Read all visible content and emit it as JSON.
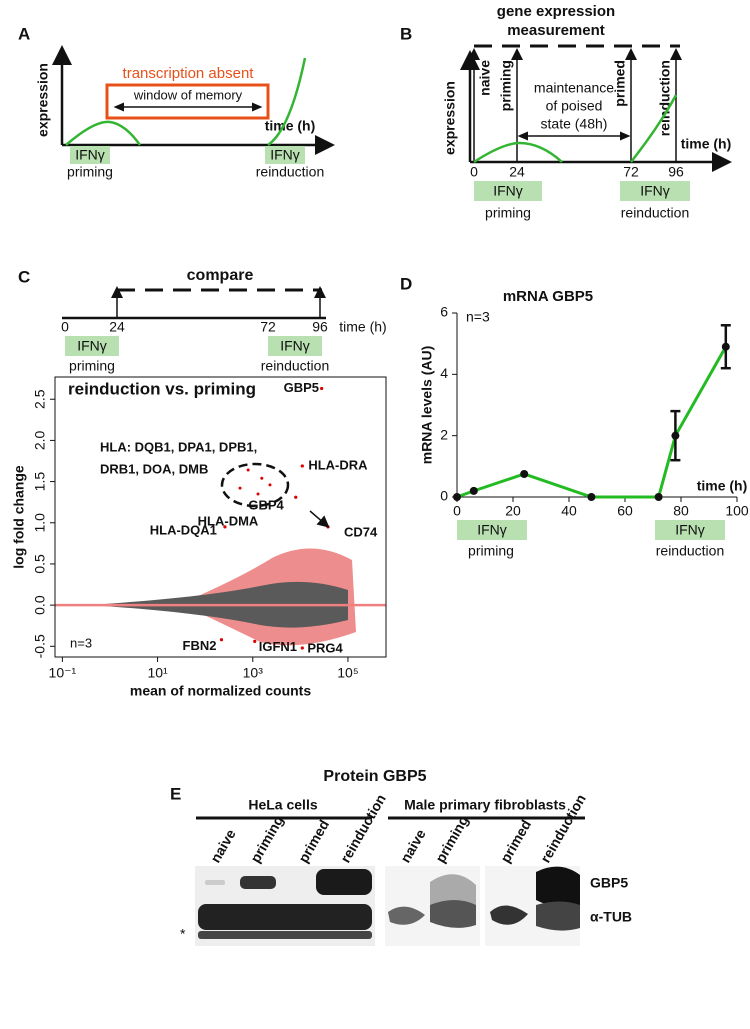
{
  "panel_a": {
    "letter": "A",
    "box_title": "transcription absent",
    "box_label": "window of memory",
    "y_label": "expression",
    "x_label": "time (h)",
    "stim_left": "IFNγ",
    "caption_left": "priming",
    "stim_right": "IFNγ",
    "caption_right": "reinduction"
  },
  "panel_b": {
    "letter": "B",
    "title_lines": [
      "gene expression",
      "measurement"
    ],
    "arrows": [
      "naive",
      "priming",
      "primed",
      "reinduction"
    ],
    "maintenance": [
      "maintenance",
      "of poised",
      "state (48h)"
    ],
    "y_label": "expression",
    "x_label": "time (h)",
    "ticks": [
      0,
      24,
      72,
      96
    ],
    "stim_left": "IFNγ",
    "caption_left": "priming",
    "stim_right": "IFNγ",
    "caption_right": "reinduction"
  },
  "panel_c": {
    "letter": "C",
    "title": "compare",
    "ticks": [
      0,
      24,
      72,
      96
    ],
    "x_label": "time (h)",
    "stim_left": "IFNγ",
    "caption_left": "priming",
    "stim_right": "IFNγ",
    "caption_right": "reinduction"
  },
  "panel_d": {
    "letter": "D"
  },
  "panel_e": {
    "letter": "E",
    "title": "Protein GBP5",
    "groups": [
      "HeLa cells",
      "Male primary fibroblasts"
    ],
    "lanes": [
      "naive",
      "priming",
      "primed",
      "reinduction",
      "naive",
      "priming",
      "primed",
      "reinduction"
    ],
    "bands": [
      "GBP5",
      "α-TUB"
    ],
    "asterisk": "*"
  },
  "chart_data": [
    {
      "type": "scatter",
      "title": "reinduction vs. priming",
      "x_label": "mean of normalized counts",
      "y_label": "log fold change",
      "xlog": true,
      "xlim": [
        0.07,
        630000
      ],
      "ylim": [
        -0.63,
        2.77
      ],
      "xticks": [
        {
          "value": 0.1,
          "label": "10⁻¹"
        },
        {
          "value": 10,
          "label": "10¹"
        },
        {
          "value": 1000,
          "label": "10³"
        },
        {
          "value": 100000,
          "label": "10⁵"
        }
      ],
      "yticks": [
        -0.5,
        {
          "value": 0,
          "label": "0.0"
        },
        0.5,
        {
          "value": 1,
          "label": "1.0"
        },
        1.5,
        {
          "value": 2,
          "label": "2.0"
        },
        2.5
      ],
      "reference_line": 0,
      "labeled_points": [
        {
          "label": "GBP5",
          "x": 28000,
          "y": 2.63
        },
        {
          "label": "HLA-DRA",
          "x": 11000,
          "y": 1.69
        },
        {
          "label": "GBP4",
          "x": 8000,
          "y": 1.31
        },
        {
          "label": "CD74",
          "x": 38000,
          "y": 0.95
        },
        {
          "label": "HLA-DQA1",
          "x": 260,
          "y": 0.95
        },
        {
          "label": "FBN2",
          "x": 220,
          "y": -0.42
        },
        {
          "label": "IGFN1",
          "x": 1100,
          "y": -0.44
        },
        {
          "label": "PRG4",
          "x": 11000,
          "y": -0.52
        }
      ],
      "series": [
        {
          "color": "#dd0000",
          "x": [
            800,
            1550,
            540,
            1290,
            2300
          ],
          "values": [
            1.64,
            1.54,
            1.42,
            1.35,
            1.46
          ]
        }
      ],
      "annotations": [
        "HLA: DQB1, DPA1, DPB1,",
        "DRB1, DOA, DMB",
        "HLA-DMA",
        "n=3"
      ]
    },
    {
      "type": "line",
      "title": "mRNA GBP5",
      "x_label": "time (h)",
      "y_label": "mRNA levels (AU)",
      "xlim": [
        0,
        100
      ],
      "xticks": [
        0,
        20,
        40,
        60,
        80,
        100
      ],
      "ylim": [
        0,
        6
      ],
      "yticks": [
        0,
        2,
        4,
        6
      ],
      "series": [
        {
          "color": "#22bb22",
          "x": [
            0,
            6,
            24,
            48,
            72,
            78,
            96
          ],
          "values": [
            0,
            0.2,
            0.75,
            0,
            0,
            2.0,
            4.9
          ],
          "errors": [
            null,
            null,
            null,
            null,
            null,
            0.8,
            0.7
          ]
        }
      ],
      "annotation": "n=3",
      "stimuli": [
        {
          "label": "IFNγ",
          "caption": "priming"
        },
        {
          "label": "IFNγ",
          "caption": "reinduction"
        }
      ]
    }
  ]
}
